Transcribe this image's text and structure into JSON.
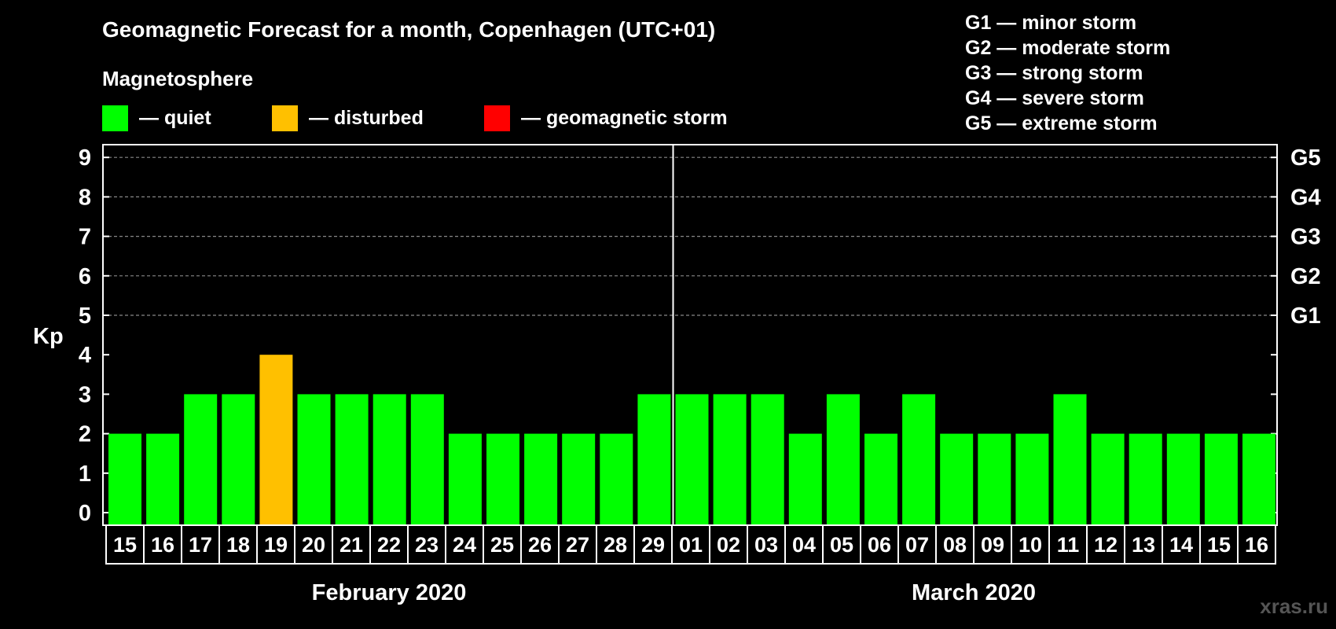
{
  "title": "Geomagnetic Forecast for a month, Copenhagen (UTC+01)",
  "legend": {
    "heading": "Magnetosphere",
    "items": [
      {
        "label": "— quiet",
        "color": "#00ff00"
      },
      {
        "label": "— disturbed",
        "color": "#ffc000"
      },
      {
        "label": "— geomagnetic storm",
        "color": "#ff0000"
      }
    ]
  },
  "storm_scale": [
    "G1 — minor storm",
    "G2 — moderate storm",
    "G3 — strong storm",
    "G4 — severe storm",
    "G5 — extreme storm"
  ],
  "watermark": "xras.ru",
  "chart_data": {
    "type": "bar",
    "ylabel": "Kp",
    "ylim": [
      0,
      9
    ],
    "yticks": [
      "0",
      "1",
      "2",
      "3",
      "4",
      "5",
      "6",
      "7",
      "8",
      "9"
    ],
    "right_axis_labels": [
      {
        "kp": 5,
        "label": "G1"
      },
      {
        "kp": 6,
        "label": "G2"
      },
      {
        "kp": 7,
        "label": "G3"
      },
      {
        "kp": 8,
        "label": "G4"
      },
      {
        "kp": 9,
        "label": "G5"
      }
    ],
    "grid": "dashed horizontal at 5-9",
    "categories": [
      "15",
      "16",
      "17",
      "18",
      "19",
      "20",
      "21",
      "22",
      "23",
      "24",
      "25",
      "26",
      "27",
      "28",
      "29",
      "01",
      "02",
      "03",
      "04",
      "05",
      "06",
      "07",
      "08",
      "09",
      "10",
      "11",
      "12",
      "13",
      "14",
      "15",
      "16"
    ],
    "values": [
      2,
      2,
      3,
      3,
      4,
      3,
      3,
      3,
      3,
      2,
      2,
      2,
      2,
      2,
      3,
      3,
      3,
      3,
      2,
      3,
      2,
      3,
      2,
      2,
      2,
      3,
      2,
      2,
      2,
      2,
      2
    ],
    "colors": [
      "#00ff00",
      "#00ff00",
      "#00ff00",
      "#00ff00",
      "#ffc000",
      "#00ff00",
      "#00ff00",
      "#00ff00",
      "#00ff00",
      "#00ff00",
      "#00ff00",
      "#00ff00",
      "#00ff00",
      "#00ff00",
      "#00ff00",
      "#00ff00",
      "#00ff00",
      "#00ff00",
      "#00ff00",
      "#00ff00",
      "#00ff00",
      "#00ff00",
      "#00ff00",
      "#00ff00",
      "#00ff00",
      "#00ff00",
      "#00ff00",
      "#00ff00",
      "#00ff00",
      "#00ff00",
      "#00ff00"
    ],
    "months": [
      {
        "label": "February 2020",
        "days": 15
      },
      {
        "label": "March 2020",
        "days": 16
      }
    ]
  }
}
